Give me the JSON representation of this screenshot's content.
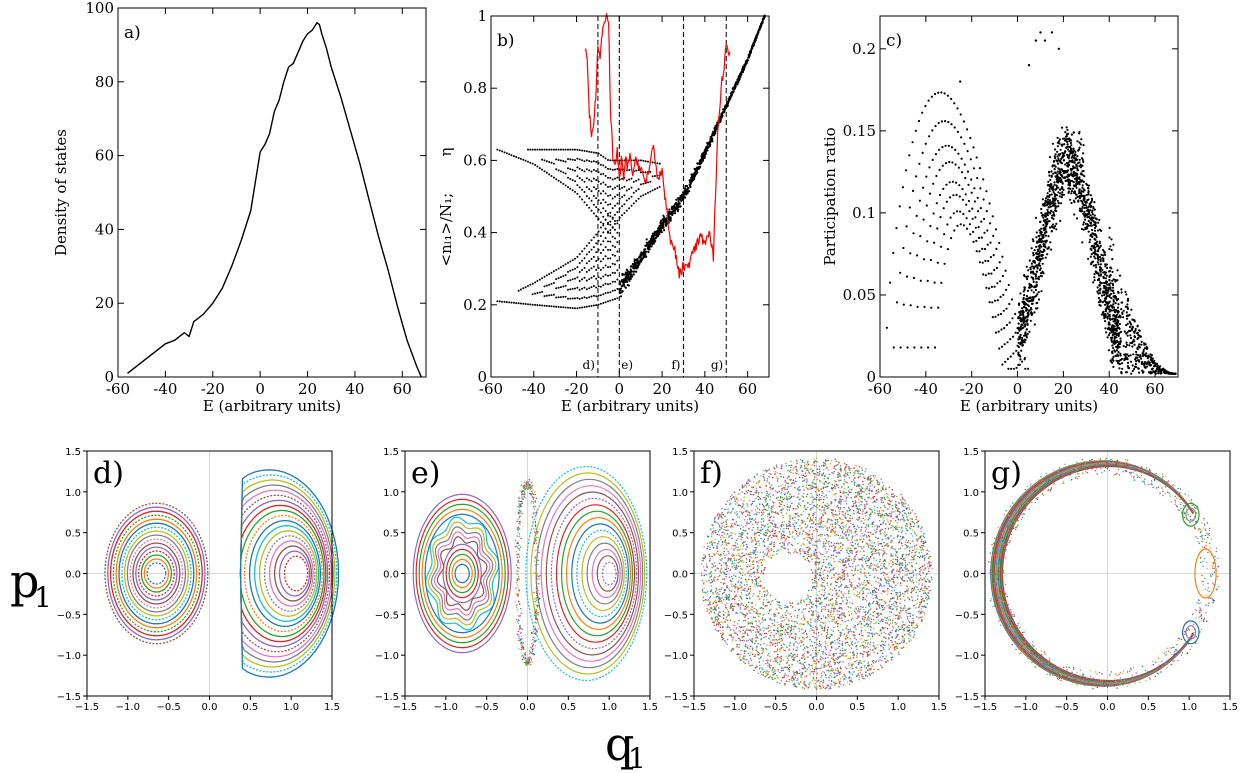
{
  "figure": {
    "shared_xlabel": "q",
    "shared_xlabel_sub": "1",
    "shared_ylabel": "p",
    "shared_ylabel_sub": "1"
  },
  "chart_data": [
    {
      "id": "a",
      "type": "line",
      "panel_label": "a)",
      "xlabel": "E (arbitrary units)",
      "ylabel": "Density of states",
      "xlim": [
        -60,
        70
      ],
      "ylim": [
        0,
        100
      ],
      "xticks": [
        -60,
        -40,
        -20,
        0,
        20,
        40,
        60
      ],
      "yticks": [
        0,
        20,
        40,
        60,
        80,
        100
      ],
      "series": [
        {
          "color": "#000000",
          "x": [
            -56,
            -52,
            -48,
            -44,
            -40,
            -36,
            -32,
            -30,
            -28,
            -26,
            -24,
            -20,
            -16,
            -12,
            -8,
            -4,
            0,
            2,
            4,
            6,
            8,
            10,
            12,
            14,
            16,
            18,
            20,
            22,
            24,
            25,
            26,
            28,
            30,
            34,
            38,
            42,
            46,
            50,
            54,
            58,
            62,
            66,
            68
          ],
          "y": [
            1,
            3,
            5,
            7,
            9,
            10,
            12,
            11,
            15,
            16,
            17,
            20,
            24,
            30,
            37,
            45,
            61,
            63,
            66,
            72,
            75,
            80,
            84,
            85,
            88,
            91,
            93,
            94,
            96,
            95.5,
            93,
            89,
            84,
            76,
            67,
            58,
            48,
            38,
            29,
            19,
            10,
            3,
            0
          ]
        }
      ]
    },
    {
      "id": "b",
      "type": "scatter",
      "panel_label": "b)",
      "xlabel": "E (arbitrary units)",
      "ylabel": "<nₗ₁>/N₁;",
      "ylabel_eta": "η",
      "xlim": [
        -60,
        70
      ],
      "ylim": [
        0,
        1
      ],
      "xticks": [
        -60,
        -40,
        -20,
        0,
        20,
        40,
        60
      ],
      "yticks": [
        0,
        0.2,
        0.4,
        0.6,
        0.8,
        1
      ],
      "vlines": [
        {
          "x": -10,
          "label": "d)"
        },
        {
          "x": 0,
          "label": "e)"
        },
        {
          "x": 30,
          "label": "f)"
        },
        {
          "x": 50,
          "label": "g)"
        }
      ],
      "bands": {
        "upper": {
          "x": [
            -57,
            -40,
            -20,
            -10,
            -5,
            0,
            10,
            20
          ],
          "center": [
            0.63,
            0.61,
            0.57,
            0.53,
            0.5,
            0.52,
            0.55,
            0.56
          ],
          "spread": [
            0.0,
            0.02,
            0.06,
            0.09,
            0.1,
            0.08,
            0.05,
            0.03
          ]
        },
        "lower": {
          "x": [
            -57,
            -40,
            -20,
            -10,
            -5,
            0
          ],
          "center": [
            0.21,
            0.23,
            0.26,
            0.3,
            0.33,
            0.32
          ],
          "spread": [
            0.0,
            0.03,
            0.07,
            0.1,
            0.12,
            0.1
          ]
        },
        "diagonal": {
          "x": [
            0,
            10,
            20,
            30,
            40,
            50,
            60,
            68
          ],
          "y": [
            0.24,
            0.33,
            0.42,
            0.5,
            0.62,
            0.75,
            0.88,
            1.0
          ]
        }
      },
      "eta_series": {
        "color": "#ff0000",
        "x": [
          -16,
          -15,
          -14,
          -13,
          -12,
          -11,
          -10,
          -9,
          -8,
          -7,
          -6,
          -5,
          -4,
          -3,
          -2,
          -1,
          0,
          1,
          2,
          3,
          4,
          5,
          6,
          8,
          10,
          12,
          14,
          16,
          18,
          20,
          22,
          24,
          26,
          28,
          30,
          32,
          34,
          36,
          38,
          40,
          42,
          44,
          46,
          48,
          50,
          52
        ],
        "y": [
          0.91,
          0.87,
          0.73,
          0.67,
          0.7,
          0.77,
          0.91,
          0.89,
          0.95,
          0.99,
          1.0,
          0.98,
          0.72,
          0.61,
          0.58,
          0.63,
          0.54,
          0.6,
          0.55,
          0.6,
          0.58,
          0.62,
          0.56,
          0.6,
          0.58,
          0.54,
          0.57,
          0.64,
          0.55,
          0.57,
          0.47,
          0.38,
          0.35,
          0.28,
          0.31,
          0.3,
          0.34,
          0.36,
          0.39,
          0.37,
          0.4,
          0.33,
          0.69,
          0.82,
          0.91,
          0.9
        ]
      }
    },
    {
      "id": "c",
      "type": "scatter",
      "panel_label": "c)",
      "xlabel": "E (arbitrary units)",
      "ylabel": "Participation ratio",
      "xlim": [
        -60,
        70
      ],
      "ylim": [
        0,
        0.22
      ],
      "xticks": [
        -60,
        -40,
        -20,
        0,
        20,
        40,
        60
      ],
      "yticks": [
        0,
        0.05,
        0.1,
        0.15,
        0.2
      ],
      "ytick_labels": [
        "0",
        "0.05",
        "0.1",
        "0.15",
        "0.2"
      ],
      "arcs": {
        "x_start": -57,
        "x_end": 5,
        "peaks": [
          0.155,
          0.145,
          0.13,
          0.12,
          0.108,
          0.1,
          0.09,
          0.082
        ]
      },
      "cloud": {
        "x_range": [
          0,
          45
        ],
        "center_x": 22,
        "peak": 0.13
      },
      "tail": {
        "x_range": [
          40,
          69
        ]
      }
    },
    {
      "id": "d",
      "type": "scatter",
      "panel_label": "d)",
      "xlim": [
        -1.5,
        1.5
      ],
      "ylim": [
        -1.5,
        1.5
      ],
      "xticks": [
        -1.5,
        -1.0,
        -0.5,
        0.0,
        0.5,
        1.0,
        1.5
      ],
      "yticks": [
        -1.5,
        -1.0,
        -0.5,
        0.0,
        0.5,
        1.0,
        1.5
      ],
      "xtick_labels": [
        "−1.5",
        "−1.0",
        "−0.5",
        "0.0",
        "0.5",
        "1.0",
        "1.5"
      ],
      "ytick_labels": [
        "−1.5",
        "−1.0",
        "−0.5",
        "0.0",
        "0.5",
        "1.0",
        "1.5"
      ]
    },
    {
      "id": "e",
      "type": "scatter",
      "panel_label": "e)",
      "xlim": [
        -1.5,
        1.5
      ],
      "ylim": [
        -1.5,
        1.5
      ],
      "xticks": [
        -1.5,
        -1.0,
        -0.5,
        0.0,
        0.5,
        1.0,
        1.5
      ],
      "yticks": [
        -1.5,
        -1.0,
        -0.5,
        0.0,
        0.5,
        1.0,
        1.5
      ],
      "xtick_labels": [
        "−1.5",
        "−1.0",
        "−0.5",
        "0.0",
        "0.5",
        "1.0",
        "1.5"
      ],
      "ytick_labels": [
        "−1.5",
        "−1.0",
        "−0.5",
        "0.0",
        "0.5",
        "1.0",
        "1.5"
      ]
    },
    {
      "id": "f",
      "type": "scatter",
      "panel_label": "f)",
      "xlim": [
        -1.5,
        1.5
      ],
      "ylim": [
        -1.5,
        1.5
      ],
      "xticks": [
        -1.5,
        -1.0,
        -0.5,
        0.0,
        0.5,
        1.0,
        1.5
      ],
      "yticks": [
        -1.5,
        -1.0,
        -0.5,
        0.0,
        0.5,
        1.0,
        1.5
      ],
      "xtick_labels": [
        "−1.5",
        "−1.0",
        "−0.5",
        "0.0",
        "0.5",
        "1.0",
        "1.5"
      ],
      "ytick_labels": [
        "−1.5",
        "−1.0",
        "−0.5",
        "0.0",
        "0.5",
        "1.0",
        "1.5"
      ]
    },
    {
      "id": "g",
      "type": "scatter",
      "panel_label": "g)",
      "xlim": [
        -1.5,
        1.5
      ],
      "ylim": [
        -1.5,
        1.5
      ],
      "xticks": [
        -1.5,
        -1.0,
        -0.5,
        0.0,
        0.5,
        1.0,
        1.5
      ],
      "yticks": [
        -1.5,
        -1.0,
        -0.5,
        0.0,
        0.5,
        1.0,
        1.5
      ],
      "xtick_labels": [
        "−1.5",
        "−1.0",
        "−0.5",
        "0.0",
        "0.5",
        "1.0",
        "1.5"
      ],
      "ytick_labels": [
        "−1.5",
        "−1.0",
        "−0.5",
        "0.0",
        "0.5",
        "1.0",
        "1.5"
      ]
    }
  ],
  "colors": {
    "trajectory_palette": [
      "#1f77b4",
      "#ff7f0e",
      "#2ca02c",
      "#d62728",
      "#9467bd",
      "#8c564b",
      "#e377c2",
      "#7f7f7f",
      "#bcbd22",
      "#17becf"
    ],
    "eta": "#ff0000",
    "axis": "#000000",
    "zero_line": "#cccccc"
  }
}
